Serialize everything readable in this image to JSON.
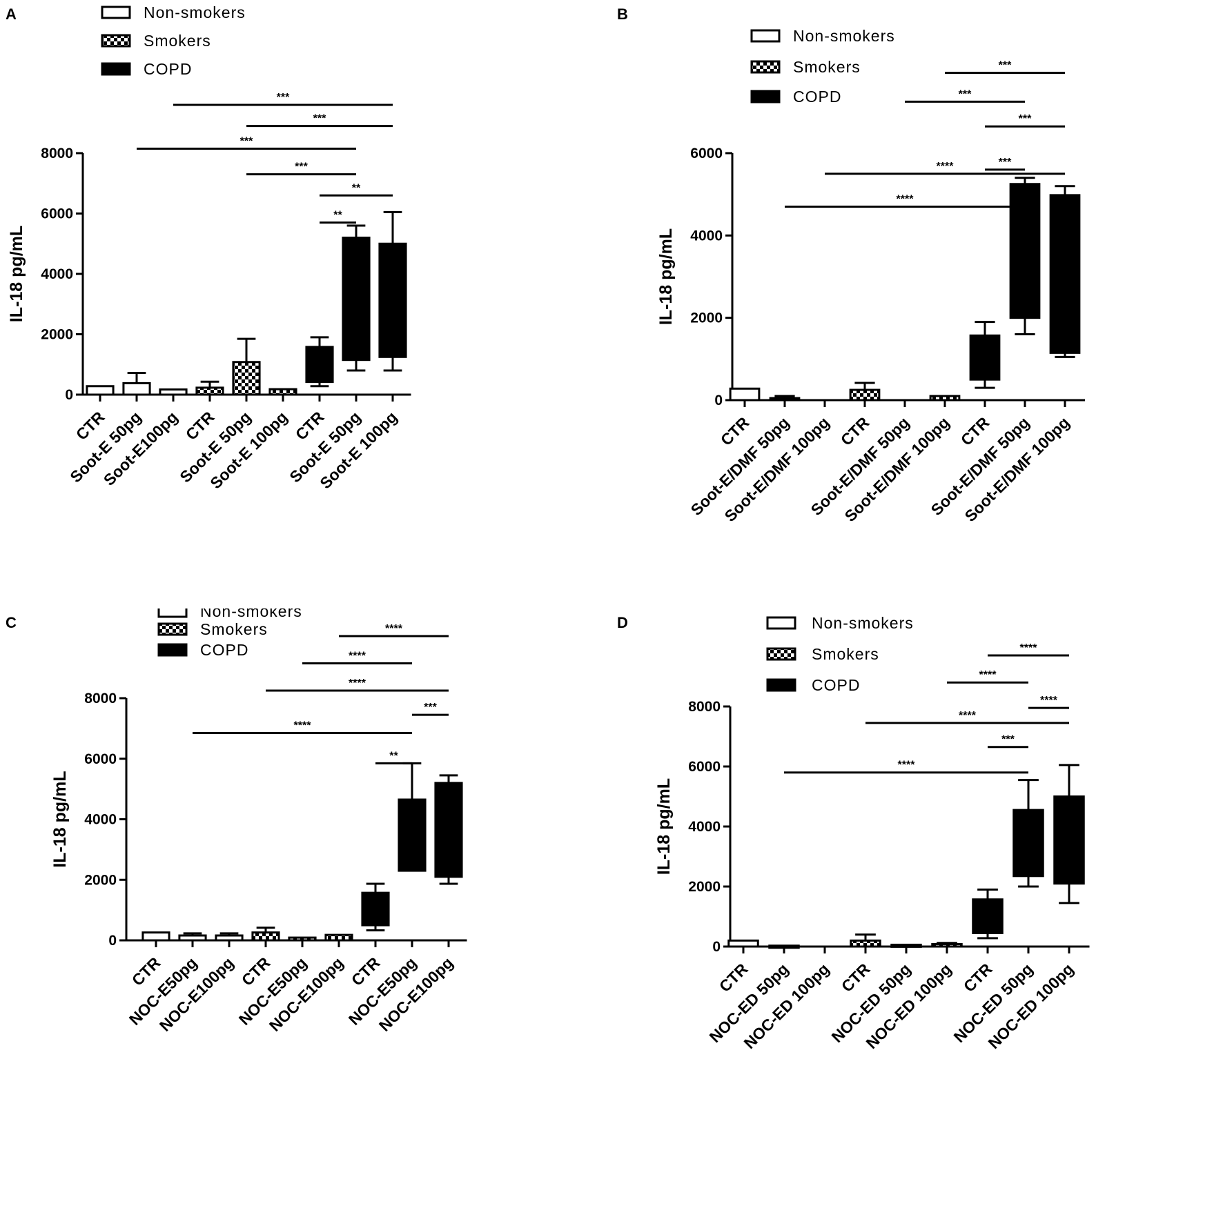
{
  "colors": {
    "ink": "#000000",
    "paper": "#ffffff"
  },
  "chart_data": [
    {
      "panel": "A",
      "type": "box",
      "ylabel": "IL-18 pg/mL",
      "ylim": [
        0,
        8000
      ],
      "yticks": [
        0,
        2000,
        4000,
        6000,
        8000
      ],
      "legend": [
        "Non-smokers",
        "Smokers",
        "COPD"
      ],
      "categories": [
        "CTR",
        "Soot-E 50pg",
        "Soot-E100pg",
        "CTR",
        "Soot-E 50pg",
        "Soot-E 100pg",
        "CTR",
        "Soot-E 50pg",
        "Soot-E 100pg"
      ],
      "groups": [
        "Non-smokers",
        "Non-smokers",
        "Non-smokers",
        "Smokers",
        "Smokers",
        "Smokers",
        "COPD",
        "COPD",
        "COPD"
      ],
      "boxes": [
        {
          "q1": 0,
          "q3": 280,
          "max": 280
        },
        {
          "q1": 0,
          "q3": 380,
          "max": 720
        },
        {
          "q1": 0,
          "q3": 170,
          "max": 170
        },
        {
          "q1": 0,
          "q3": 230,
          "max": 430
        },
        {
          "q1": 0,
          "q3": 1080,
          "max": 1850
        },
        {
          "q1": 0,
          "q3": 180,
          "max": 180
        },
        {
          "min": 280,
          "q1": 420,
          "q3": 1580,
          "max": 1900
        },
        {
          "min": 800,
          "q1": 1150,
          "q3": 5200,
          "max": 5600
        },
        {
          "min": 800,
          "q1": 1250,
          "q3": 5000,
          "max": 6050
        }
      ],
      "significance": [
        {
          "from": 6,
          "to": 7,
          "label": "**",
          "y": 5700
        },
        {
          "from": 6,
          "to": 8,
          "label": "**",
          "y": 6600
        },
        {
          "from": 4,
          "to": 7,
          "label": "***",
          "y": 7300
        },
        {
          "from": 1,
          "to": 7,
          "label": "***",
          "y": 8150
        },
        {
          "from": 4,
          "to": 8,
          "label": "***",
          "y": 8900
        },
        {
          "from": 2,
          "to": 8,
          "label": "***",
          "y": 9600
        }
      ]
    },
    {
      "panel": "B",
      "type": "box",
      "ylabel": "IL-18 pg/mL",
      "ylim": [
        0,
        6000
      ],
      "yticks": [
        0,
        2000,
        4000,
        6000
      ],
      "legend": [
        "Non-smokers",
        "Smokers",
        "COPD"
      ],
      "categories": [
        "CTR",
        "Soot-E/DMF 50pg",
        "Soot-E/DMF 100pg",
        "CTR",
        "Soot-E/DMF 50pg",
        "Soot-E/DMF 100pg",
        "CTR",
        "Soot-E/DMF 50pg",
        "Soot-E/DMF 100pg"
      ],
      "groups": [
        "Non-smokers",
        "Non-smokers",
        "Non-smokers",
        "Smokers",
        "Smokers",
        "Smokers",
        "COPD",
        "COPD",
        "COPD"
      ],
      "boxes": [
        {
          "q1": 0,
          "q3": 280,
          "max": 280
        },
        {
          "q1": 0,
          "q3": 50,
          "max": 100
        },
        null,
        {
          "q1": 0,
          "q3": 250,
          "max": 420
        },
        null,
        {
          "q1": 0,
          "q3": 100,
          "max": 100
        },
        {
          "min": 300,
          "q1": 500,
          "q3": 1570,
          "max": 1900
        },
        {
          "min": 1600,
          "q1": 2000,
          "q3": 5250,
          "max": 5400
        },
        {
          "min": 1050,
          "q1": 1150,
          "q3": 4980,
          "max": 5200
        }
      ],
      "significance": [
        {
          "from": 1,
          "to": 7,
          "label": "****",
          "y": 4700
        },
        {
          "from": 2,
          "to": 8,
          "label": "****",
          "y": 5500
        },
        {
          "from": 6,
          "to": 7,
          "label": "***",
          "y": 5600
        },
        {
          "from": 6,
          "to": 8,
          "label": "***",
          "y": 6650
        },
        {
          "from": 4,
          "to": 7,
          "label": "***",
          "y": 7250
        },
        {
          "from": 5,
          "to": 8,
          "label": "***",
          "y": 7950
        }
      ]
    },
    {
      "panel": "C",
      "type": "box",
      "ylabel": "IL-18 pg/mL",
      "ylim": [
        0,
        8000
      ],
      "yticks": [
        0,
        2000,
        4000,
        6000,
        8000
      ],
      "legend": [
        "Non-smokers",
        "Smokers",
        "COPD"
      ],
      "categories": [
        "CTR",
        "NOC-E50pg",
        "NOC-E100pg",
        "CTR",
        "NOC-E50pg",
        "NOC-E100pg",
        "CTR",
        "NOC-E50pg",
        "NOC-E100pg"
      ],
      "groups": [
        "Non-smokers",
        "Non-smokers",
        "Non-smokers",
        "Smokers",
        "Smokers",
        "Smokers",
        "COPD",
        "COPD",
        "COPD"
      ],
      "boxes": [
        {
          "q1": 0,
          "q3": 260,
          "max": 260
        },
        {
          "q1": 0,
          "q3": 160,
          "max": 230
        },
        {
          "q1": 0,
          "q3": 160,
          "max": 230
        },
        {
          "q1": 0,
          "q3": 260,
          "max": 420
        },
        {
          "q1": 0,
          "q3": 90,
          "max": 90
        },
        {
          "q1": 0,
          "q3": 180,
          "max": 180
        },
        {
          "min": 330,
          "q1": 500,
          "q3": 1570,
          "max": 1870
        },
        {
          "min": 2300,
          "q1": 2300,
          "q3": 4650,
          "max": 5850
        },
        {
          "min": 1870,
          "q1": 2100,
          "q3": 5200,
          "max": 5450
        }
      ],
      "significance": [
        {
          "from": 6,
          "to": 7,
          "label": "**",
          "y": 5850
        },
        {
          "from": 1,
          "to": 7,
          "label": "****",
          "y": 6850
        },
        {
          "from": 7,
          "to": 8,
          "label": "***",
          "y": 7450
        },
        {
          "from": 3,
          "to": 8,
          "label": "****",
          "y": 8250
        },
        {
          "from": 4,
          "to": 7,
          "label": "****",
          "y": 9150
        },
        {
          "from": 5,
          "to": 8,
          "label": "****",
          "y": 10050
        }
      ]
    },
    {
      "panel": "D",
      "type": "box",
      "ylabel": "IL-18 pg/mL",
      "ylim": [
        0,
        8000
      ],
      "yticks": [
        0,
        2000,
        4000,
        6000,
        8000
      ],
      "legend": [
        "Non-smokers",
        "Smokers",
        "COPD"
      ],
      "categories": [
        "CTR",
        "NOC-ED 50pg",
        "NOC-ED 100pg",
        "CTR",
        "NOC-ED 50pg",
        "NOC-ED 100pg",
        "CTR",
        "NOC-ED 50pg",
        "NOC-ED 100pg"
      ],
      "groups": [
        "Non-smokers",
        "Non-smokers",
        "Non-smokers",
        "Smokers",
        "Smokers",
        "Smokers",
        "COPD",
        "COPD",
        "COPD"
      ],
      "boxes": [
        {
          "q1": 0,
          "q3": 200,
          "max": 200
        },
        {
          "q1": 0,
          "q3": 30,
          "max": 30
        },
        null,
        {
          "q1": 0,
          "q3": 200,
          "max": 400
        },
        {
          "q1": 0,
          "q3": 60,
          "max": 60
        },
        {
          "q1": 0,
          "q3": 80,
          "max": 120
        },
        {
          "min": 280,
          "q1": 450,
          "q3": 1570,
          "max": 1900
        },
        {
          "min": 2000,
          "q1": 2350,
          "q3": 4550,
          "max": 5550
        },
        {
          "min": 1450,
          "q1": 2100,
          "q3": 5000,
          "max": 6050
        }
      ],
      "significance": [
        {
          "from": 1,
          "to": 7,
          "label": "****",
          "y": 5800
        },
        {
          "from": 6,
          "to": 7,
          "label": "***",
          "y": 6650
        },
        {
          "from": 3,
          "to": 8,
          "label": "****",
          "y": 7450
        },
        {
          "from": 7,
          "to": 8,
          "label": "****",
          "y": 7950
        },
        {
          "from": 5,
          "to": 7,
          "label": "****",
          "y": 8800
        },
        {
          "from": 6,
          "to": 8,
          "label": "****",
          "y": 9700
        }
      ]
    }
  ]
}
